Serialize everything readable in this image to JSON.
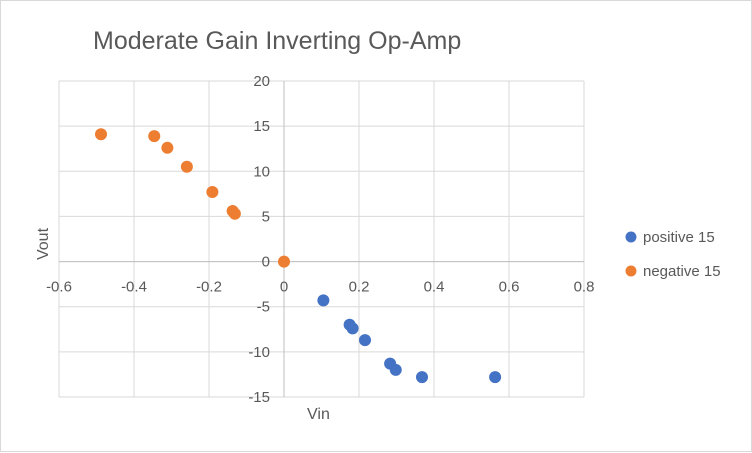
{
  "chart_data": {
    "type": "scatter",
    "title": "Moderate Gain Inverting Op-Amp",
    "xlabel": "Vin",
    "ylabel": "Vout",
    "xlim": [
      -0.6,
      0.8
    ],
    "ylim": [
      -15,
      20
    ],
    "xticks": [
      "-0.6",
      "-0.4",
      "-0.2",
      "0",
      "0.2",
      "0.4",
      "0.6",
      "0.8"
    ],
    "yticks": [
      "-15",
      "-10",
      "-5",
      "0",
      "5",
      "10",
      "15",
      "20"
    ],
    "grid": true,
    "legend_position": "right",
    "series": [
      {
        "name": "positive 15",
        "color": "#4472C4",
        "points": [
          [
            0.105,
            -4.3
          ],
          [
            0.175,
            -7.0
          ],
          [
            0.183,
            -7.4
          ],
          [
            0.216,
            -8.7
          ],
          [
            0.283,
            -11.3
          ],
          [
            0.298,
            -12.0
          ],
          [
            0.368,
            -12.8
          ],
          [
            0.563,
            -12.8
          ]
        ]
      },
      {
        "name": "negative 15",
        "color": "#ED7D31",
        "points": [
          [
            -0.488,
            14.1
          ],
          [
            -0.346,
            13.9
          ],
          [
            -0.311,
            12.6
          ],
          [
            -0.259,
            10.5
          ],
          [
            -0.191,
            7.7
          ],
          [
            -0.137,
            5.6
          ],
          [
            -0.131,
            5.3
          ],
          [
            0.0,
            0.0
          ]
        ]
      }
    ]
  }
}
